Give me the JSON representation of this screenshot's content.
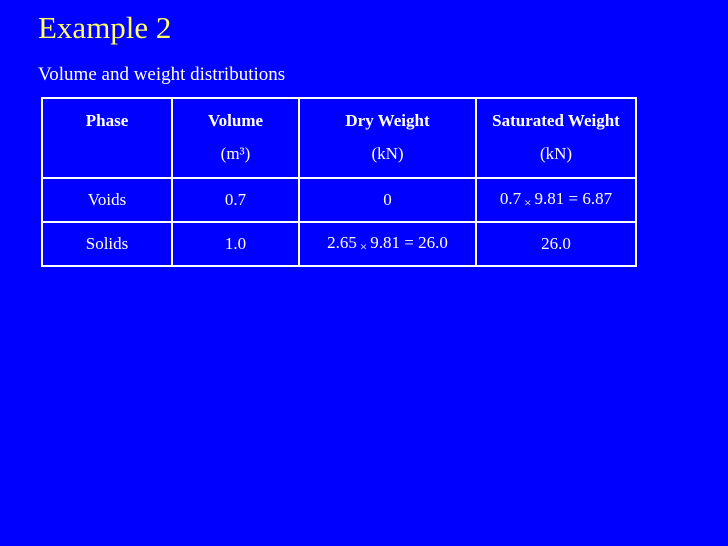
{
  "slide": {
    "title": "Example 2",
    "subtitle": "Volume and weight distributions"
  },
  "table": {
    "columns": [
      {
        "label": "Phase",
        "unit": ""
      },
      {
        "label": "Volume",
        "unit": "(m³)"
      },
      {
        "label": "Dry Weight",
        "unit": "(kN)"
      },
      {
        "label": "Saturated Weight",
        "unit": "(kN)"
      }
    ],
    "rows": [
      {
        "phase": "Voids",
        "volume": "0.7",
        "dry_weight": "0",
        "saturated_weight": {
          "a": "0.7",
          "b": "9.81 =  6.87"
        }
      },
      {
        "phase": "Solids",
        "volume": "1.0",
        "dry_weight": {
          "a": "2.65",
          "b": "9.81 =  26.0"
        },
        "saturated_weight": "26.0"
      }
    ],
    "times_symbol": "×"
  },
  "colors": {
    "background": "#0000ff",
    "title": "#ffff66",
    "text": "#ffffff"
  }
}
